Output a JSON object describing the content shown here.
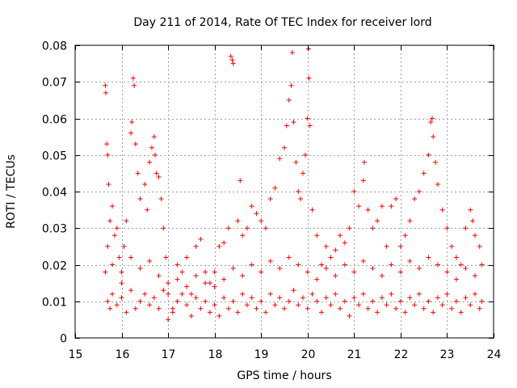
{
  "chart_data": {
    "type": "scatter",
    "title": "Day 211 of 2014, Rate Of TEC Index for receiver lord",
    "xlabel": "GPS time / hours",
    "ylabel": "ROTI / TECUs",
    "xlim": [
      15,
      24
    ],
    "ylim": [
      0,
      0.08
    ],
    "xticks": [
      15,
      16,
      17,
      18,
      19,
      20,
      21,
      22,
      23,
      24
    ],
    "xtick_labels": [
      "15",
      "16",
      "17",
      "18",
      "19",
      "20",
      "21",
      "22",
      "23",
      "24"
    ],
    "yticks": [
      0,
      0.01,
      0.02,
      0.03,
      0.04,
      0.05,
      0.06,
      0.07,
      0.08
    ],
    "ytick_labels": [
      "0",
      "0.01",
      "0.02",
      "0.03",
      "0.04",
      "0.05",
      "0.06",
      "0.07",
      "0.08"
    ],
    "grid": true,
    "marker": "+",
    "color": "#ff0000",
    "series": [
      {
        "name": "ROTI",
        "points": [
          [
            15.65,
            0.069
          ],
          [
            15.66,
            0.067
          ],
          [
            15.68,
            0.053
          ],
          [
            15.7,
            0.05
          ],
          [
            15.72,
            0.042
          ],
          [
            15.65,
            0.018
          ],
          [
            15.7,
            0.025
          ],
          [
            15.75,
            0.032
          ],
          [
            15.8,
            0.036
          ],
          [
            15.85,
            0.028
          ],
          [
            15.9,
            0.03
          ],
          [
            15.95,
            0.022
          ],
          [
            16.0,
            0.015
          ],
          [
            16.05,
            0.025
          ],
          [
            16.1,
            0.032
          ],
          [
            16.2,
            0.056
          ],
          [
            16.22,
            0.059
          ],
          [
            16.25,
            0.071
          ],
          [
            16.27,
            0.069
          ],
          [
            16.3,
            0.053
          ],
          [
            16.35,
            0.045
          ],
          [
            16.4,
            0.038
          ],
          [
            16.5,
            0.042
          ],
          [
            16.55,
            0.035
          ],
          [
            16.6,
            0.048
          ],
          [
            16.65,
            0.052
          ],
          [
            16.7,
            0.055
          ],
          [
            16.72,
            0.05
          ],
          [
            16.75,
            0.045
          ],
          [
            16.8,
            0.044
          ],
          [
            16.85,
            0.038
          ],
          [
            16.9,
            0.03
          ],
          [
            16.95,
            0.022
          ],
          [
            17.0,
            0.012
          ],
          [
            17.1,
            0.008
          ],
          [
            17.2,
            0.02
          ],
          [
            17.3,
            0.018
          ],
          [
            17.4,
            0.022
          ],
          [
            17.5,
            0.012
          ],
          [
            17.6,
            0.025
          ],
          [
            17.7,
            0.027
          ],
          [
            17.8,
            0.018
          ],
          [
            17.9,
            0.015
          ],
          [
            18.0,
            0.014
          ],
          [
            18.1,
            0.025
          ],
          [
            18.2,
            0.026
          ],
          [
            18.3,
            0.03
          ],
          [
            18.35,
            0.077
          ],
          [
            18.38,
            0.076
          ],
          [
            18.4,
            0.075
          ],
          [
            18.5,
            0.032
          ],
          [
            18.55,
            0.043
          ],
          [
            18.6,
            0.028
          ],
          [
            18.7,
            0.03
          ],
          [
            18.8,
            0.036
          ],
          [
            18.9,
            0.034
          ],
          [
            19.0,
            0.032
          ],
          [
            19.1,
            0.03
          ],
          [
            19.2,
            0.038
          ],
          [
            19.3,
            0.041
          ],
          [
            19.4,
            0.049
          ],
          [
            19.5,
            0.052
          ],
          [
            19.55,
            0.058
          ],
          [
            19.6,
            0.065
          ],
          [
            19.65,
            0.069
          ],
          [
            19.67,
            0.078
          ],
          [
            19.7,
            0.059
          ],
          [
            19.75,
            0.048
          ],
          [
            19.8,
            0.04
          ],
          [
            19.85,
            0.038
          ],
          [
            19.9,
            0.045
          ],
          [
            19.95,
            0.05
          ],
          [
            20.0,
            0.06
          ],
          [
            20.02,
            0.079
          ],
          [
            20.03,
            0.071
          ],
          [
            20.05,
            0.058
          ],
          [
            20.1,
            0.035
          ],
          [
            20.2,
            0.028
          ],
          [
            20.3,
            0.02
          ],
          [
            20.4,
            0.025
          ],
          [
            20.5,
            0.022
          ],
          [
            20.6,
            0.024
          ],
          [
            20.7,
            0.028
          ],
          [
            20.8,
            0.026
          ],
          [
            20.9,
            0.03
          ],
          [
            21.0,
            0.04
          ],
          [
            21.1,
            0.036
          ],
          [
            21.2,
            0.043
          ],
          [
            21.22,
            0.048
          ],
          [
            21.3,
            0.035
          ],
          [
            21.4,
            0.03
          ],
          [
            21.5,
            0.032
          ],
          [
            21.6,
            0.036
          ],
          [
            21.7,
            0.025
          ],
          [
            21.8,
            0.036
          ],
          [
            21.9,
            0.038
          ],
          [
            22.0,
            0.025
          ],
          [
            22.1,
            0.028
          ],
          [
            22.2,
            0.032
          ],
          [
            22.3,
            0.038
          ],
          [
            22.4,
            0.04
          ],
          [
            22.5,
            0.045
          ],
          [
            22.6,
            0.05
          ],
          [
            22.65,
            0.059
          ],
          [
            22.68,
            0.06
          ],
          [
            22.7,
            0.055
          ],
          [
            22.75,
            0.048
          ],
          [
            22.8,
            0.042
          ],
          [
            22.9,
            0.035
          ],
          [
            23.0,
            0.03
          ],
          [
            23.1,
            0.025
          ],
          [
            23.2,
            0.022
          ],
          [
            23.3,
            0.02
          ],
          [
            23.4,
            0.03
          ],
          [
            23.5,
            0.035
          ],
          [
            23.55,
            0.032
          ],
          [
            23.6,
            0.028
          ],
          [
            23.7,
            0.025
          ],
          [
            23.75,
            0.02
          ],
          [
            15.7,
            0.01
          ],
          [
            15.75,
            0.008
          ],
          [
            15.8,
            0.012
          ],
          [
            15.9,
            0.009
          ],
          [
            16.0,
            0.011
          ],
          [
            16.1,
            0.007
          ],
          [
            16.2,
            0.013
          ],
          [
            16.3,
            0.008
          ],
          [
            16.4,
            0.01
          ],
          [
            16.5,
            0.012
          ],
          [
            16.6,
            0.009
          ],
          [
            16.7,
            0.011
          ],
          [
            16.8,
            0.008
          ],
          [
            16.9,
            0.013
          ],
          [
            17.0,
            0.005
          ],
          [
            17.1,
            0.007
          ],
          [
            17.2,
            0.01
          ],
          [
            17.3,
            0.012
          ],
          [
            17.4,
            0.009
          ],
          [
            17.5,
            0.006
          ],
          [
            17.6,
            0.011
          ],
          [
            17.7,
            0.008
          ],
          [
            17.8,
            0.01
          ],
          [
            17.9,
            0.007
          ],
          [
            18.0,
            0.009
          ],
          [
            18.1,
            0.006
          ],
          [
            18.2,
            0.011
          ],
          [
            18.3,
            0.008
          ],
          [
            18.4,
            0.01
          ],
          [
            18.5,
            0.007
          ],
          [
            18.6,
            0.012
          ],
          [
            18.7,
            0.009
          ],
          [
            18.8,
            0.011
          ],
          [
            18.9,
            0.008
          ],
          [
            19.0,
            0.01
          ],
          [
            19.1,
            0.007
          ],
          [
            19.2,
            0.012
          ],
          [
            19.3,
            0.009
          ],
          [
            19.4,
            0.011
          ],
          [
            19.5,
            0.008
          ],
          [
            19.6,
            0.01
          ],
          [
            19.7,
            0.013
          ],
          [
            19.8,
            0.009
          ],
          [
            19.9,
            0.011
          ],
          [
            20.0,
            0.008
          ],
          [
            20.1,
            0.012
          ],
          [
            20.2,
            0.01
          ],
          [
            20.3,
            0.007
          ],
          [
            20.4,
            0.011
          ],
          [
            20.5,
            0.009
          ],
          [
            20.6,
            0.012
          ],
          [
            20.7,
            0.008
          ],
          [
            20.8,
            0.01
          ],
          [
            20.9,
            0.006
          ],
          [
            21.0,
            0.011
          ],
          [
            21.1,
            0.009
          ],
          [
            21.2,
            0.012
          ],
          [
            21.3,
            0.008
          ],
          [
            21.4,
            0.01
          ],
          [
            21.5,
            0.007
          ],
          [
            21.6,
            0.011
          ],
          [
            21.7,
            0.009
          ],
          [
            21.8,
            0.012
          ],
          [
            21.9,
            0.008
          ],
          [
            22.0,
            0.01
          ],
          [
            22.1,
            0.007
          ],
          [
            22.2,
            0.011
          ],
          [
            22.3,
            0.009
          ],
          [
            22.4,
            0.012
          ],
          [
            22.5,
            0.008
          ],
          [
            22.6,
            0.01
          ],
          [
            22.7,
            0.007
          ],
          [
            22.8,
            0.011
          ],
          [
            22.9,
            0.009
          ],
          [
            23.0,
            0.012
          ],
          [
            23.1,
            0.008
          ],
          [
            23.2,
            0.01
          ],
          [
            23.3,
            0.007
          ],
          [
            23.4,
            0.011
          ],
          [
            23.5,
            0.009
          ],
          [
            23.6,
            0.012
          ],
          [
            23.7,
            0.008
          ],
          [
            23.75,
            0.01
          ],
          [
            15.8,
            0.02
          ],
          [
            16.0,
            0.018
          ],
          [
            16.2,
            0.022
          ],
          [
            16.4,
            0.019
          ],
          [
            16.6,
            0.021
          ],
          [
            16.8,
            0.017
          ],
          [
            17.0,
            0.015
          ],
          [
            17.2,
            0.016
          ],
          [
            17.4,
            0.014
          ],
          [
            17.6,
            0.017
          ],
          [
            17.8,
            0.015
          ],
          [
            18.0,
            0.018
          ],
          [
            18.2,
            0.016
          ],
          [
            18.4,
            0.019
          ],
          [
            18.6,
            0.017
          ],
          [
            18.8,
            0.02
          ],
          [
            19.0,
            0.018
          ],
          [
            19.2,
            0.021
          ],
          [
            19.4,
            0.019
          ],
          [
            19.6,
            0.022
          ],
          [
            19.8,
            0.02
          ],
          [
            20.0,
            0.018
          ],
          [
            20.2,
            0.016
          ],
          [
            20.4,
            0.019
          ],
          [
            20.6,
            0.017
          ],
          [
            20.8,
            0.02
          ],
          [
            21.0,
            0.018
          ],
          [
            21.2,
            0.021
          ],
          [
            21.4,
            0.019
          ],
          [
            21.6,
            0.017
          ],
          [
            21.8,
            0.02
          ],
          [
            22.0,
            0.018
          ],
          [
            22.2,
            0.021
          ],
          [
            22.4,
            0.019
          ],
          [
            22.6,
            0.022
          ],
          [
            22.8,
            0.02
          ],
          [
            23.0,
            0.018
          ],
          [
            23.2,
            0.016
          ],
          [
            23.4,
            0.019
          ],
          [
            23.6,
            0.017
          ]
        ]
      }
    ]
  }
}
